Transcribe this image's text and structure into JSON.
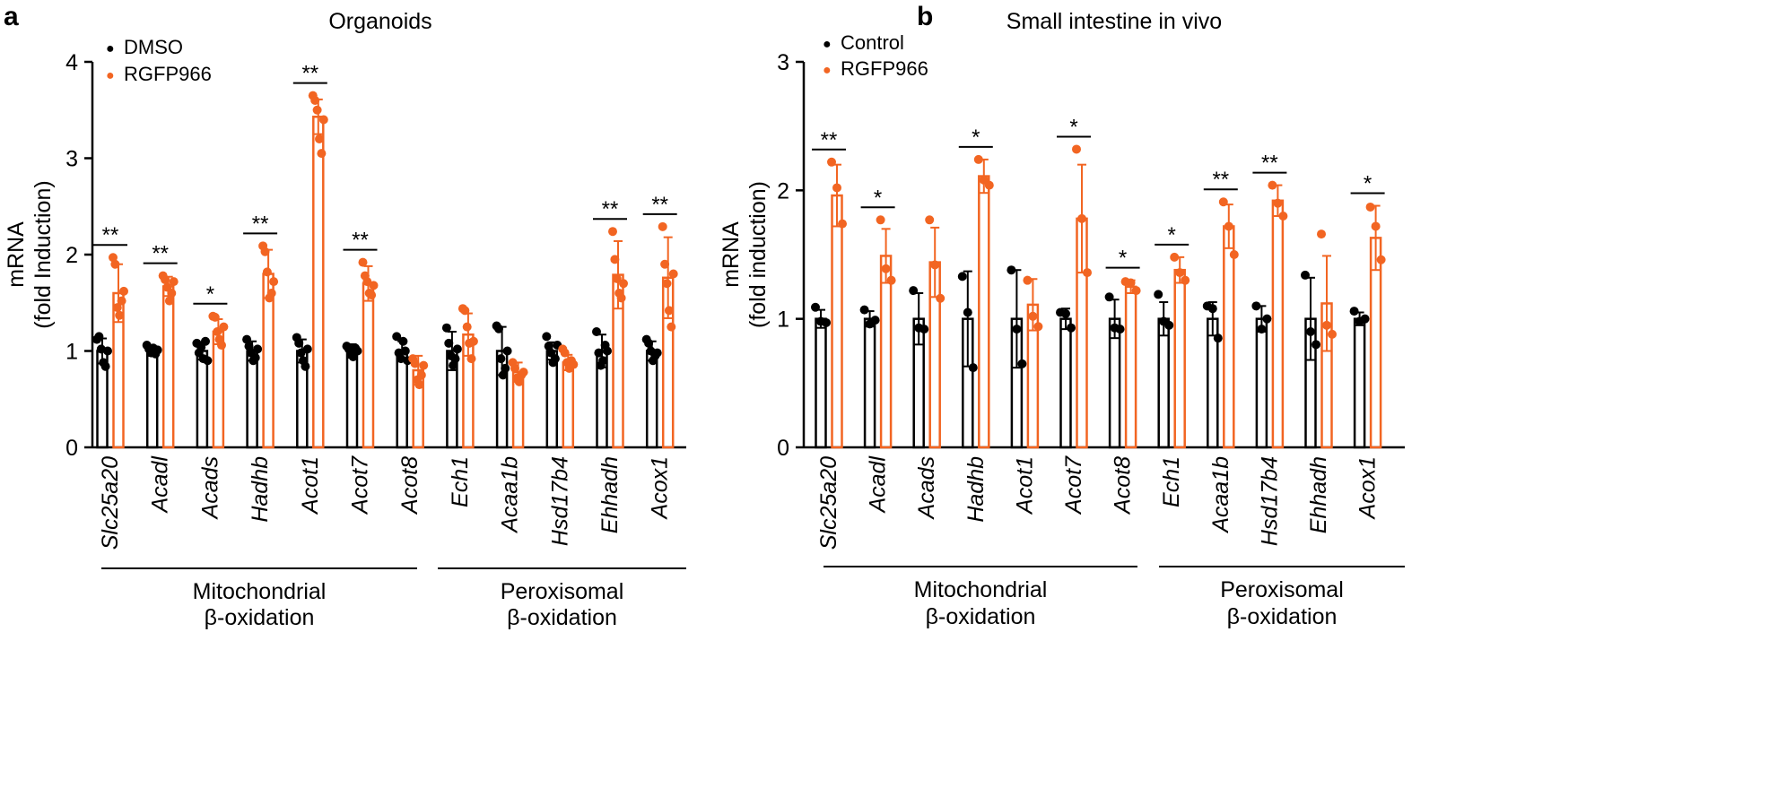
{
  "colors": {
    "control": "#000000",
    "treatment": "#f26522"
  },
  "chart_data": [
    {
      "type": "bar",
      "panel_letter": "a",
      "title": "Organoids",
      "ylabel": [
        "mRNA",
        "(fold Induction)"
      ],
      "ylim": [
        0,
        4
      ],
      "yticks": [
        "0",
        "1",
        "2",
        "3",
        "4"
      ],
      "legend": [
        "DMSO",
        "RGFP966"
      ],
      "categories": [
        "Slc25a20",
        "Acadl",
        "Acads",
        "Hadhb",
        "Acot1",
        "Acot7",
        "Acot8",
        "Ech1",
        "Acaa1b",
        "Hsd17b4",
        "Ehhadh",
        "Acox1"
      ],
      "series": [
        {
          "name": "DMSO",
          "values": [
            1.0,
            1.0,
            1.0,
            1.0,
            1.0,
            1.0,
            1.0,
            1.0,
            1.0,
            1.0,
            1.0,
            1.0
          ],
          "errors": [
            0.13,
            0.05,
            0.09,
            0.1,
            0.12,
            0.07,
            0.1,
            0.2,
            0.25,
            0.09,
            0.17,
            0.1
          ],
          "points": [
            [
              1.12,
              1.15,
              1.02,
              0.88,
              0.84,
              1.0
            ],
            [
              1.06,
              1.02,
              0.98,
              1.03,
              0.97,
              1.01
            ],
            [
              1.08,
              0.98,
              1.04,
              0.92,
              1.1,
              0.9
            ],
            [
              1.12,
              1.05,
              0.98,
              0.9,
              0.93,
              1.02
            ],
            [
              1.14,
              1.08,
              0.98,
              0.9,
              0.84,
              1.02
            ],
            [
              1.05,
              1.02,
              0.97,
              0.94,
              1.03,
              1.0
            ],
            [
              1.15,
              0.98,
              0.92,
              1.1,
              1.0,
              0.9
            ],
            [
              1.24,
              1.08,
              0.95,
              0.85,
              0.92,
              1.02
            ],
            [
              1.26,
              1.23,
              0.92,
              0.75,
              0.82,
              1.0
            ],
            [
              1.15,
              1.05,
              0.98,
              0.88,
              0.92,
              1.06
            ],
            [
              1.2,
              0.98,
              0.85,
              0.9,
              1.06,
              1.0
            ],
            [
              1.12,
              1.08,
              1.0,
              0.9,
              0.95,
              0.98
            ]
          ]
        },
        {
          "name": "RGFP966",
          "values": [
            1.6,
            1.67,
            1.2,
            1.8,
            3.43,
            1.7,
            0.8,
            1.17,
            0.78,
            0.88,
            1.79,
            1.76
          ],
          "errors": [
            0.3,
            0.1,
            0.13,
            0.25,
            0.18,
            0.18,
            0.15,
            0.22,
            0.1,
            0.08,
            0.35,
            0.42
          ],
          "points": [
            [
              1.97,
              1.9,
              1.45,
              1.37,
              1.52,
              1.62
            ],
            [
              1.78,
              1.74,
              1.66,
              1.52,
              1.6,
              1.72
            ],
            [
              1.36,
              1.35,
              1.2,
              1.12,
              1.06,
              1.25
            ],
            [
              2.09,
              2.03,
              1.82,
              1.55,
              1.6,
              1.72
            ],
            [
              3.65,
              3.6,
              3.5,
              3.2,
              3.05,
              3.4
            ],
            [
              1.92,
              1.78,
              1.72,
              1.6,
              1.58,
              1.68
            ],
            [
              0.92,
              0.87,
              0.7,
              0.65,
              0.75,
              0.85
            ],
            [
              1.44,
              1.42,
              1.25,
              1.08,
              0.92,
              1.1
            ],
            [
              0.88,
              0.82,
              0.72,
              0.68,
              0.75,
              0.78
            ],
            [
              1.02,
              0.98,
              0.88,
              0.82,
              0.9,
              0.86
            ],
            [
              2.24,
              1.95,
              1.75,
              1.6,
              1.55,
              1.7
            ],
            [
              2.29,
              1.9,
              1.7,
              1.42,
              1.25,
              1.8
            ]
          ]
        }
      ],
      "significance": [
        "**",
        "**",
        "*",
        "**",
        "**",
        "**",
        "",
        "",
        "",
        "",
        "**",
        "**"
      ],
      "groups": [
        {
          "label": [
            "Mitochondrial",
            "β-oxidation"
          ],
          "from": "Slc25a20",
          "to": "Acot8"
        },
        {
          "label": [
            "Peroxisomal",
            "β-oxidation"
          ],
          "from": "Ech1",
          "to": "Acox1"
        }
      ]
    },
    {
      "type": "bar",
      "panel_letter": "b",
      "title": "Small intestine in vivo",
      "ylabel": [
        "mRNA",
        "(fold induction)"
      ],
      "ylim": [
        0,
        3
      ],
      "yticks": [
        "0",
        "1",
        "2",
        "3"
      ],
      "legend": [
        "Control",
        "RGFP966"
      ],
      "categories": [
        "Slc25a20",
        "Acadl",
        "Acads",
        "Hadhb",
        "Acot1",
        "Acot7",
        "Acot8",
        "Ech1",
        "Acaa1b",
        "Hsd17b4",
        "Ehhadh",
        "Acox1"
      ],
      "series": [
        {
          "name": "Control",
          "values": [
            1.0,
            1.0,
            1.0,
            1.0,
            1.0,
            1.0,
            1.0,
            1.0,
            1.0,
            1.0,
            1.0,
            1.0
          ],
          "errors": [
            0.07,
            0.06,
            0.2,
            0.37,
            0.38,
            0.08,
            0.15,
            0.13,
            0.13,
            0.1,
            0.32,
            0.05
          ],
          "points": [
            [
              1.09,
              0.98,
              0.97
            ],
            [
              1.07,
              0.96,
              0.99
            ],
            [
              1.22,
              0.93,
              0.92
            ],
            [
              1.33,
              1.05,
              0.62
            ],
            [
              1.38,
              0.92,
              0.65
            ],
            [
              1.05,
              1.04,
              0.93
            ],
            [
              1.17,
              0.93,
              0.92
            ],
            [
              1.19,
              0.98,
              0.95
            ],
            [
              1.1,
              1.08,
              0.85
            ],
            [
              1.1,
              0.92,
              1.0
            ],
            [
              1.34,
              0.9,
              0.8
            ],
            [
              1.06,
              0.98,
              1.0
            ]
          ]
        },
        {
          "name": "RGFP966",
          "values": [
            1.96,
            1.49,
            1.44,
            2.11,
            1.11,
            1.78,
            1.25,
            1.38,
            1.72,
            1.92,
            1.12,
            1.63
          ],
          "errors": [
            0.24,
            0.21,
            0.27,
            0.13,
            0.2,
            0.42,
            0.05,
            0.1,
            0.17,
            0.12,
            0.37,
            0.25
          ],
          "points": [
            [
              2.22,
              2.02,
              1.74
            ],
            [
              1.77,
              1.39,
              1.3
            ],
            [
              1.77,
              1.42,
              1.16
            ],
            [
              2.24,
              2.08,
              2.04
            ],
            [
              1.3,
              1.02,
              0.94
            ],
            [
              2.32,
              1.78,
              1.36
            ],
            [
              1.29,
              1.28,
              1.22
            ],
            [
              1.48,
              1.36,
              1.3
            ],
            [
              1.91,
              1.72,
              1.5
            ],
            [
              2.04,
              1.9,
              1.8
            ],
            [
              1.66,
              0.95,
              0.88
            ],
            [
              1.87,
              1.72,
              1.46
            ]
          ]
        }
      ],
      "significance": [
        "**",
        "*",
        "",
        "*",
        "",
        "*",
        "*",
        "*",
        "**",
        "**",
        "",
        "*"
      ],
      "groups": [
        {
          "label": [
            "Mitochondrial",
            "β-oxidation"
          ],
          "from": "Slc25a20",
          "to": "Acot8"
        },
        {
          "label": [
            "Peroxisomal",
            "β-oxidation"
          ],
          "from": "Ech1",
          "to": "Acox1"
        }
      ]
    }
  ]
}
